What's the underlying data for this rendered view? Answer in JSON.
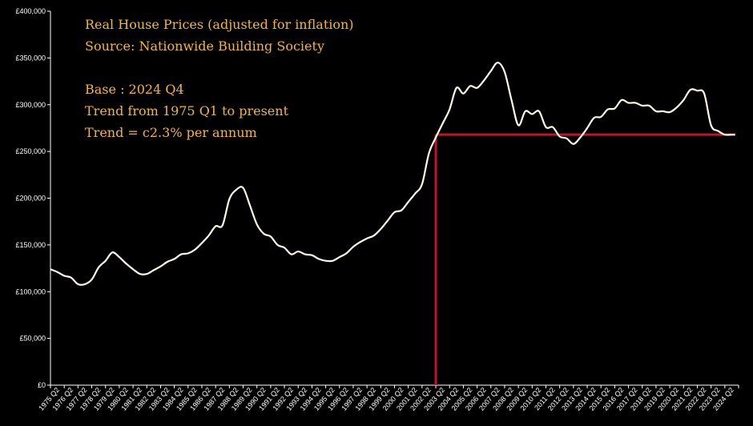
{
  "chart_data": {
    "type": "line",
    "annotations": [
      "Real House Prices (adjusted for inflation)",
      "Source: Nationwide Building Society",
      "Base : 2024 Q4",
      "Trend from 1975 Q1 to present",
      "Trend = c2.3% per annum"
    ],
    "xlabel": "",
    "ylabel": "",
    "ylim": [
      0,
      400000
    ],
    "y_ticks": [
      0,
      50000,
      100000,
      150000,
      200000,
      250000,
      300000,
      350000,
      400000
    ],
    "y_tick_labels": [
      "£0",
      "£50,000",
      "£100,000",
      "£150,000",
      "£200,000",
      "£250,000",
      "£300,000",
      "£350,000",
      "£400,000"
    ],
    "x_tick_labels": [
      "1975 Q2",
      "1976 Q2",
      "1977 Q2",
      "1978 Q2",
      "1979 Q2",
      "1980 Q2",
      "1981 Q2",
      "1982 Q2",
      "1983 Q2",
      "1984 Q2",
      "1985 Q2",
      "1986 Q2",
      "1987 Q2",
      "1988 Q2",
      "1989 Q2",
      "1990 Q2",
      "1991 Q2",
      "1992 Q2",
      "1993 Q2",
      "1994 Q2",
      "1995 Q2",
      "1996 Q2",
      "1997 Q2",
      "1998 Q2",
      "1999 Q2",
      "2000 Q2",
      "2001 Q2",
      "2002 Q2",
      "2003 Q2",
      "2004 Q2",
      "2005 Q2",
      "2006 Q2",
      "2007 Q2",
      "2008 Q2",
      "2009 Q2",
      "2010 Q2",
      "2011 Q2",
      "2012 Q2",
      "2013 Q2",
      "2014 Q2",
      "2015 Q2",
      "2016 Q2",
      "2017 Q2",
      "2018 Q2",
      "2019 Q2",
      "2020 Q2",
      "2021 Q2",
      "2022 Q2",
      "2023 Q2",
      "2024 Q2"
    ],
    "series": [
      {
        "name": "Real House Prices",
        "color": "#fffbe6",
        "x": [
          1975.0,
          1975.5,
          1976.0,
          1976.5,
          1977.0,
          1977.5,
          1978.0,
          1978.5,
          1979.0,
          1979.5,
          1980.0,
          1980.5,
          1981.0,
          1981.5,
          1982.0,
          1982.5,
          1983.0,
          1983.5,
          1984.0,
          1984.5,
          1985.0,
          1985.5,
          1986.0,
          1986.5,
          1987.0,
          1987.5,
          1988.0,
          1988.5,
          1989.0,
          1989.5,
          1990.0,
          1990.5,
          1991.0,
          1991.5,
          1992.0,
          1992.5,
          1993.0,
          1993.5,
          1994.0,
          1994.5,
          1995.0,
          1995.5,
          1996.0,
          1996.5,
          1997.0,
          1997.5,
          1998.0,
          1998.5,
          1999.0,
          1999.5,
          2000.0,
          2000.5,
          2001.0,
          2001.5,
          2002.0,
          2002.5,
          2003.0,
          2003.5,
          2004.0,
          2004.5,
          2005.0,
          2005.5,
          2006.0,
          2006.5,
          2007.0,
          2007.5,
          2008.0,
          2008.5,
          2009.0,
          2009.5,
          2010.0,
          2010.5,
          2011.0,
          2011.5,
          2012.0,
          2012.5,
          2013.0,
          2013.5,
          2014.0,
          2014.5,
          2015.0,
          2015.5,
          2016.0,
          2016.5,
          2017.0,
          2017.5,
          2018.0,
          2018.5,
          2019.0,
          2019.5,
          2020.0,
          2020.5,
          2021.0,
          2021.5,
          2022.0,
          2022.5,
          2023.0,
          2023.5,
          2024.0,
          2024.5,
          2024.75
        ],
        "values": [
          124000,
          121000,
          117000,
          115000,
          108000,
          108000,
          113000,
          126000,
          133000,
          142000,
          137000,
          130000,
          124000,
          119000,
          119000,
          123000,
          127000,
          132000,
          135000,
          140000,
          141000,
          145000,
          152000,
          160000,
          170000,
          171000,
          199000,
          209000,
          211000,
          192000,
          172000,
          162000,
          159000,
          150000,
          147000,
          140000,
          143000,
          140000,
          139000,
          135000,
          133000,
          133000,
          137000,
          141000,
          148000,
          153000,
          157000,
          160000,
          167000,
          176000,
          185000,
          187000,
          196000,
          205000,
          215000,
          248000,
          265000,
          280000,
          295000,
          318000,
          312000,
          320000,
          318000,
          326000,
          336000,
          345000,
          335000,
          305000,
          278000,
          293000,
          290000,
          293000,
          276000,
          276000,
          266000,
          264000,
          258000,
          265000,
          275000,
          286000,
          287000,
          295000,
          296000,
          305000,
          302000,
          302000,
          299000,
          299000,
          293000,
          293000,
          292000,
          297000,
          305000,
          316000,
          315000,
          312000,
          278000,
          272000,
          268000,
          268000,
          268000
        ]
      }
    ],
    "trend_line": {
      "value": 268000,
      "from_x": 2003.0,
      "to_x": 2024.75,
      "color": "#c8102e"
    }
  }
}
